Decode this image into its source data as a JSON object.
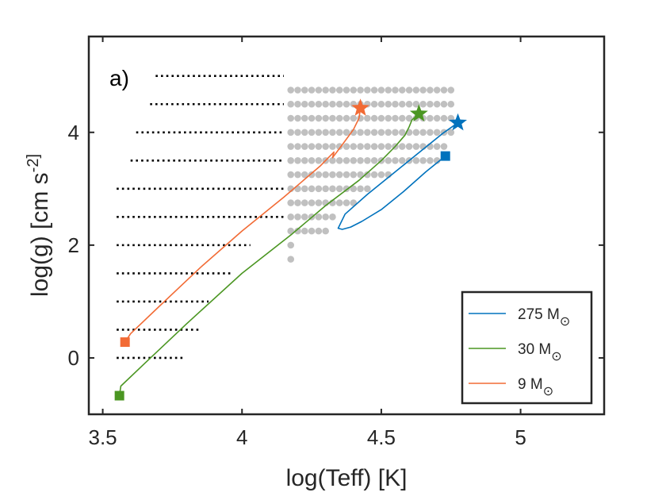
{
  "chart_data": {
    "type": "scatter",
    "panel_label": "a)",
    "xlabel": "log(Teff) [K]",
    "ylabel": "log(g) [cm s^-2]",
    "xlim": [
      3.45,
      5.3
    ],
    "ylim": [
      -1.0,
      5.7
    ],
    "x_ticks": [
      3.5,
      4,
      4.5,
      5
    ],
    "x_tick_labels": [
      "3.5",
      "4",
      "4.5",
      "5"
    ],
    "y_ticks": [
      0,
      2,
      4
    ],
    "y_tick_labels": [
      "0",
      "2",
      "4"
    ],
    "grid": false,
    "legend_position": "bottom-right",
    "grid_models": [
      {
        "logg": 5.0,
        "x_start": 3.69,
        "x_end": 4.15
      },
      {
        "logg": 4.5,
        "x_start": 3.67,
        "x_end": 4.15
      },
      {
        "logg": 4.0,
        "x_start": 3.62,
        "x_end": 4.15
      },
      {
        "logg": 3.5,
        "x_start": 3.6,
        "x_end": 4.15
      },
      {
        "logg": 3.0,
        "x_start": 3.55,
        "x_end": 4.15
      },
      {
        "logg": 2.5,
        "x_start": 3.55,
        "x_end": 4.15
      },
      {
        "logg": 2.0,
        "x_start": 3.55,
        "x_end": 4.03
      },
      {
        "logg": 1.5,
        "x_start": 3.55,
        "x_end": 3.96
      },
      {
        "logg": 1.0,
        "x_start": 3.55,
        "x_end": 3.88
      },
      {
        "logg": 0.5,
        "x_start": 3.55,
        "x_end": 3.85
      },
      {
        "logg": 0.0,
        "x_start": 3.55,
        "x_end": 3.79
      }
    ],
    "hot_models": [
      {
        "logg": 4.75,
        "x_start": 4.175,
        "x_end": 4.75
      },
      {
        "logg": 4.5,
        "x_start": 4.175,
        "x_end": 4.75
      },
      {
        "logg": 4.25,
        "x_start": 4.175,
        "x_end": 4.75
      },
      {
        "logg": 4.0,
        "x_start": 4.175,
        "x_end": 4.75
      },
      {
        "logg": 3.75,
        "x_start": 4.175,
        "x_end": 4.725
      },
      {
        "logg": 3.5,
        "x_start": 4.175,
        "x_end": 4.7
      },
      {
        "logg": 3.25,
        "x_start": 4.175,
        "x_end": 4.525
      },
      {
        "logg": 3.0,
        "x_start": 4.175,
        "x_end": 4.45
      },
      {
        "logg": 2.75,
        "x_start": 4.175,
        "x_end": 4.4
      },
      {
        "logg": 2.5,
        "x_start": 4.175,
        "x_end": 4.325
      },
      {
        "logg": 2.25,
        "x_start": 4.175,
        "x_end": 4.3
      },
      {
        "logg": 2.0,
        "x_start": 4.175,
        "x_end": 4.175
      },
      {
        "logg": 1.75,
        "x_start": 4.175,
        "x_end": 4.175
      }
    ],
    "series": [
      {
        "name": "275 M_sun",
        "color": "#0072BD",
        "start": [
          4.73,
          3.58
        ],
        "end": [
          4.775,
          4.17
        ],
        "x": [
          4.73,
          4.66,
          4.58,
          4.5,
          4.43,
          4.39,
          4.36,
          4.345,
          4.37,
          4.45,
          4.55,
          4.65,
          4.72,
          4.775
        ],
        "y": [
          3.58,
          3.3,
          2.95,
          2.63,
          2.42,
          2.32,
          2.28,
          2.3,
          2.55,
          2.9,
          3.3,
          3.7,
          3.98,
          4.17
        ]
      },
      {
        "name": "30 M_sun",
        "color": "#4B9622",
        "start": [
          3.56,
          -0.67
        ],
        "end": [
          4.635,
          4.33
        ],
        "x": [
          3.56,
          3.565,
          3.65,
          3.8,
          4.0,
          4.18,
          4.3,
          4.42,
          4.5,
          4.55,
          4.585,
          4.6,
          4.61,
          4.635
        ],
        "y": [
          -0.67,
          -0.5,
          -0.1,
          0.6,
          1.5,
          2.2,
          2.7,
          3.15,
          3.5,
          3.75,
          3.95,
          4.1,
          4.22,
          4.33
        ]
      },
      {
        "name": "9 M_sun",
        "color": "#F26B35",
        "start": [
          3.58,
          0.28
        ],
        "end": [
          4.425,
          4.43
        ],
        "x": [
          3.58,
          3.6,
          3.7,
          3.85,
          4.0,
          4.15,
          4.28,
          4.33,
          4.325,
          4.36,
          4.4,
          4.42,
          4.425
        ],
        "y": [
          0.28,
          0.43,
          0.9,
          1.6,
          2.25,
          2.85,
          3.4,
          3.65,
          3.55,
          3.78,
          4.05,
          4.25,
          4.43
        ]
      }
    ],
    "legend": [
      {
        "label": "275 M",
        "subscript": "⊙",
        "color": "#0072BD"
      },
      {
        "label": "30 M",
        "subscript": "⊙",
        "color": "#4B9622"
      },
      {
        "label": "9 M",
        "subscript": "⊙",
        "color": "#F26B35"
      }
    ],
    "colors": {
      "hot_dots": "#C0C0C0",
      "grid_dots": "#000000",
      "axis": "#262626"
    }
  }
}
